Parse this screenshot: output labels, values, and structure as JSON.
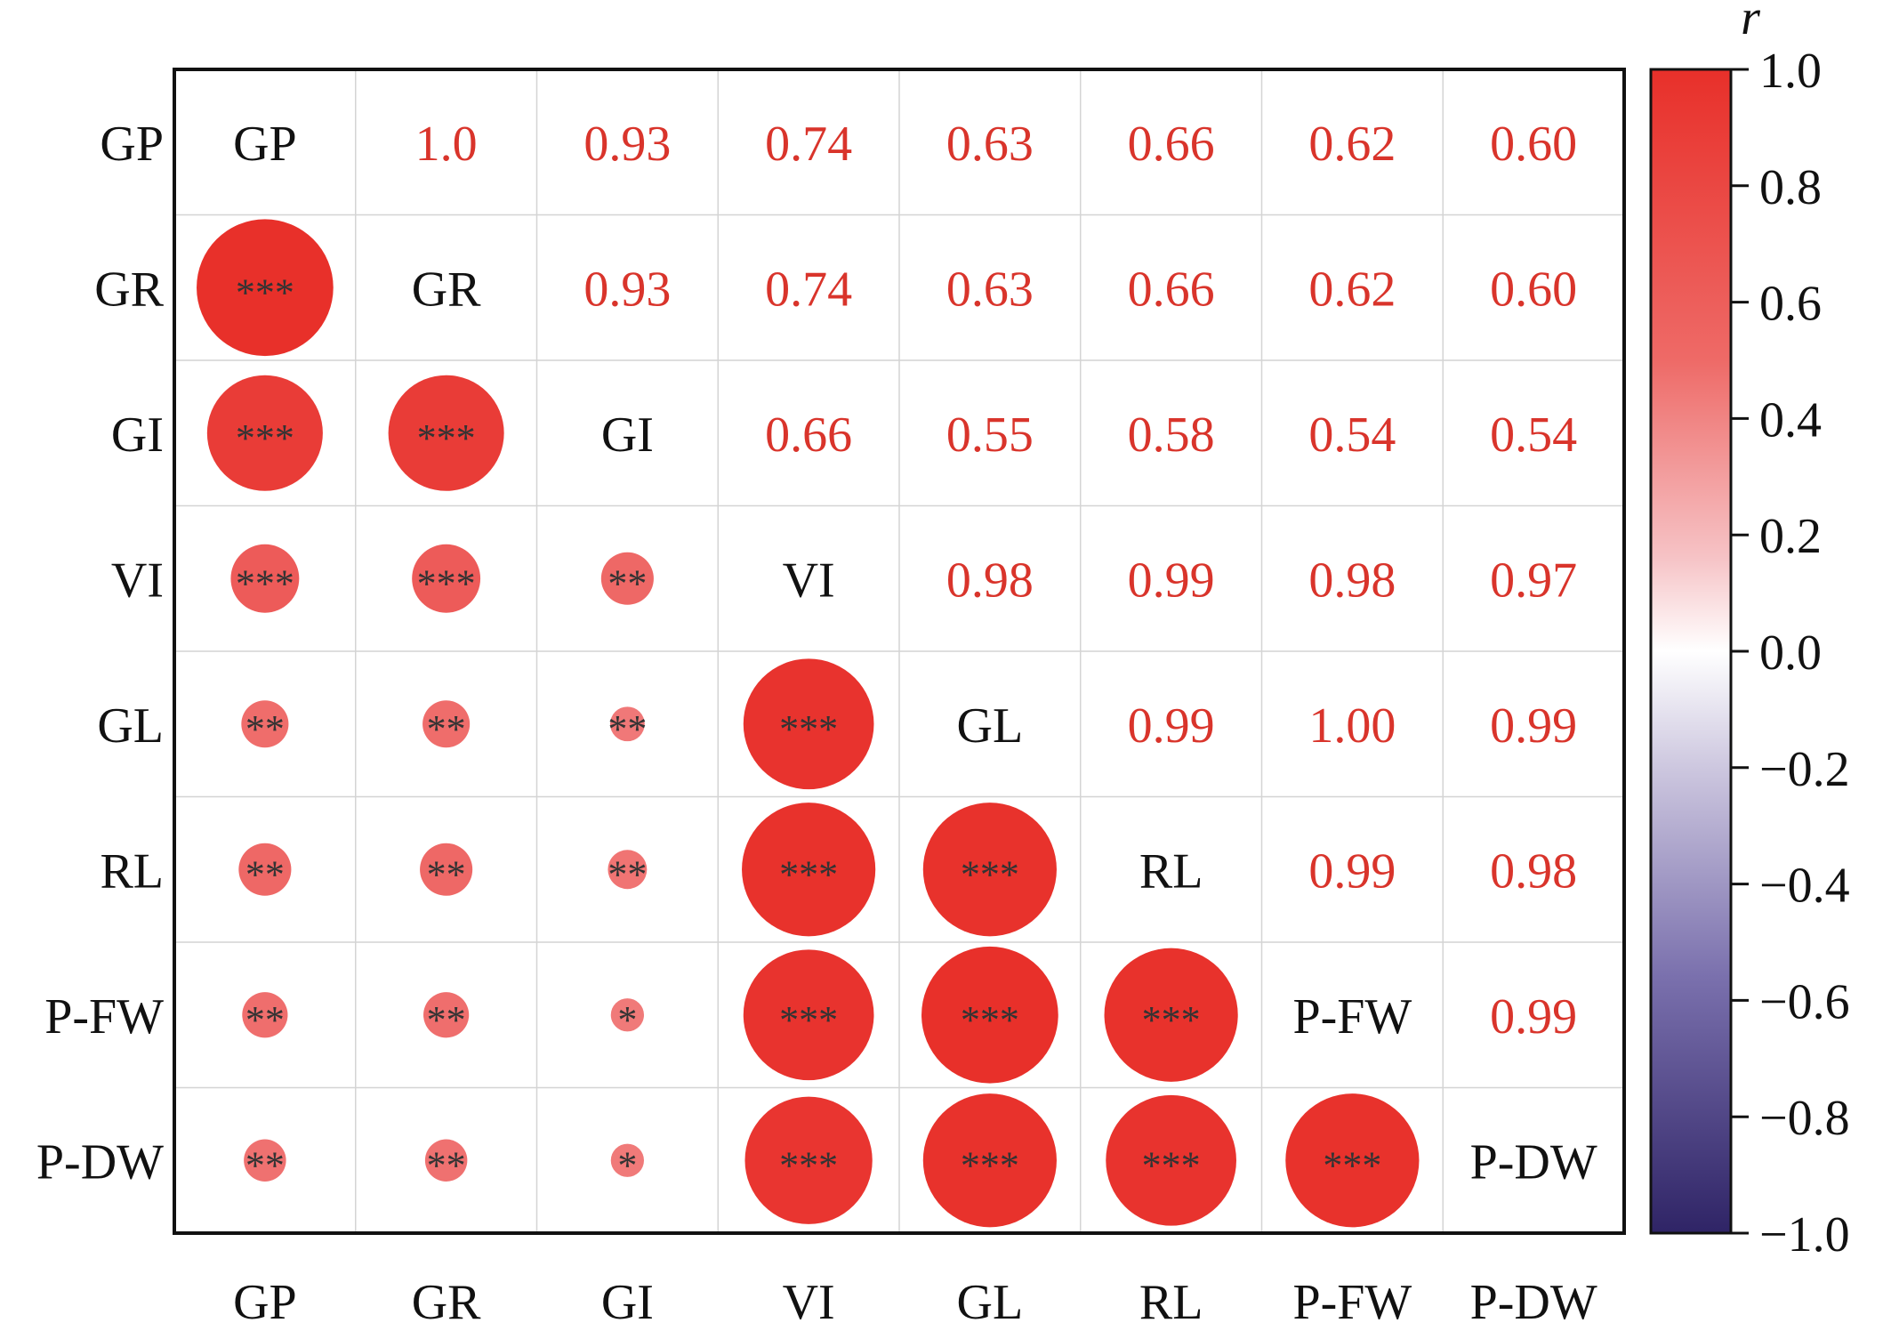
{
  "chart_data": {
    "type": "heatmap",
    "variables": [
      "GP",
      "GR",
      "GI",
      "VI",
      "GL",
      "RL",
      "P-FW",
      "P-DW"
    ],
    "upper_triangle_labels": [
      [
        "GP",
        "1.0",
        "0.93",
        "0.74",
        "0.63",
        "0.66",
        "0.62",
        "0.60"
      ],
      [
        "",
        "GR",
        "0.93",
        "0.74",
        "0.63",
        "0.66",
        "0.62",
        "0.60"
      ],
      [
        "",
        "",
        "GI",
        "0.66",
        "0.55",
        "0.58",
        "0.54",
        "0.54"
      ],
      [
        "",
        "",
        "",
        "VI",
        "0.98",
        "0.99",
        "0.98",
        "0.97"
      ],
      [
        "",
        "",
        "",
        "",
        "GL",
        "0.99",
        "1.00",
        "0.99"
      ],
      [
        "",
        "",
        "",
        "",
        "",
        "RL",
        "0.99",
        "0.98"
      ],
      [
        "",
        "",
        "",
        "",
        "",
        "",
        "P-FW",
        "0.99"
      ],
      [
        "",
        "",
        "",
        "",
        "",
        "",
        "",
        "P-DW"
      ]
    ],
    "lower_triangle": [
      {
        "row": "GR",
        "col": "GP",
        "r": 1.0,
        "sig": "***"
      },
      {
        "row": "GI",
        "col": "GP",
        "r": 0.93,
        "sig": "***"
      },
      {
        "row": "GI",
        "col": "GR",
        "r": 0.93,
        "sig": "***"
      },
      {
        "row": "VI",
        "col": "GP",
        "r": 0.74,
        "sig": "***"
      },
      {
        "row": "VI",
        "col": "GR",
        "r": 0.74,
        "sig": "***"
      },
      {
        "row": "VI",
        "col": "GI",
        "r": 0.66,
        "sig": "**"
      },
      {
        "row": "GL",
        "col": "GP",
        "r": 0.63,
        "sig": "**"
      },
      {
        "row": "GL",
        "col": "GR",
        "r": 0.63,
        "sig": "**"
      },
      {
        "row": "GL",
        "col": "GI",
        "r": 0.55,
        "sig": "**"
      },
      {
        "row": "GL",
        "col": "VI",
        "r": 0.98,
        "sig": "***"
      },
      {
        "row": "RL",
        "col": "GP",
        "r": 0.66,
        "sig": "**"
      },
      {
        "row": "RL",
        "col": "GR",
        "r": 0.66,
        "sig": "**"
      },
      {
        "row": "RL",
        "col": "GI",
        "r": 0.58,
        "sig": "**"
      },
      {
        "row": "RL",
        "col": "VI",
        "r": 0.99,
        "sig": "***"
      },
      {
        "row": "RL",
        "col": "GL",
        "r": 0.99,
        "sig": "***"
      },
      {
        "row": "P-FW",
        "col": "GP",
        "r": 0.62,
        "sig": "**"
      },
      {
        "row": "P-FW",
        "col": "GR",
        "r": 0.62,
        "sig": "**"
      },
      {
        "row": "P-FW",
        "col": "GI",
        "r": 0.54,
        "sig": "*"
      },
      {
        "row": "P-FW",
        "col": "VI",
        "r": 0.98,
        "sig": "***"
      },
      {
        "row": "P-FW",
        "col": "GL",
        "r": 1.0,
        "sig": "***"
      },
      {
        "row": "P-FW",
        "col": "RL",
        "r": 0.99,
        "sig": "***"
      },
      {
        "row": "P-DW",
        "col": "GP",
        "r": 0.6,
        "sig": "**"
      },
      {
        "row": "P-DW",
        "col": "GR",
        "r": 0.6,
        "sig": "**"
      },
      {
        "row": "P-DW",
        "col": "GI",
        "r": 0.54,
        "sig": "*"
      },
      {
        "row": "P-DW",
        "col": "VI",
        "r": 0.97,
        "sig": "***"
      },
      {
        "row": "P-DW",
        "col": "GL",
        "r": 0.99,
        "sig": "***"
      },
      {
        "row": "P-DW",
        "col": "RL",
        "r": 0.98,
        "sig": "***"
      },
      {
        "row": "P-DW",
        "col": "P-FW",
        "r": 0.99,
        "sig": "***"
      }
    ],
    "colorbar": {
      "title": "r",
      "range": [
        -1.0,
        1.0
      ],
      "ticks": [
        "1.0",
        "0.8",
        "0.6",
        "0.4",
        "0.2",
        "0.0",
        "−0.2",
        "−0.4",
        "−0.6",
        "−0.8",
        "−1.0"
      ],
      "tick_values": [
        1.0,
        0.8,
        0.6,
        0.4,
        0.2,
        0.0,
        -0.2,
        -0.4,
        -0.6,
        -0.8,
        -1.0
      ],
      "colors": {
        "positive": "#e8302a",
        "zero": "#ffffff",
        "negative": "#2f2466"
      }
    },
    "colors": {
      "value_text": "#d9342b",
      "label_text": "#111111",
      "grid": "#d4d4d4"
    }
  }
}
